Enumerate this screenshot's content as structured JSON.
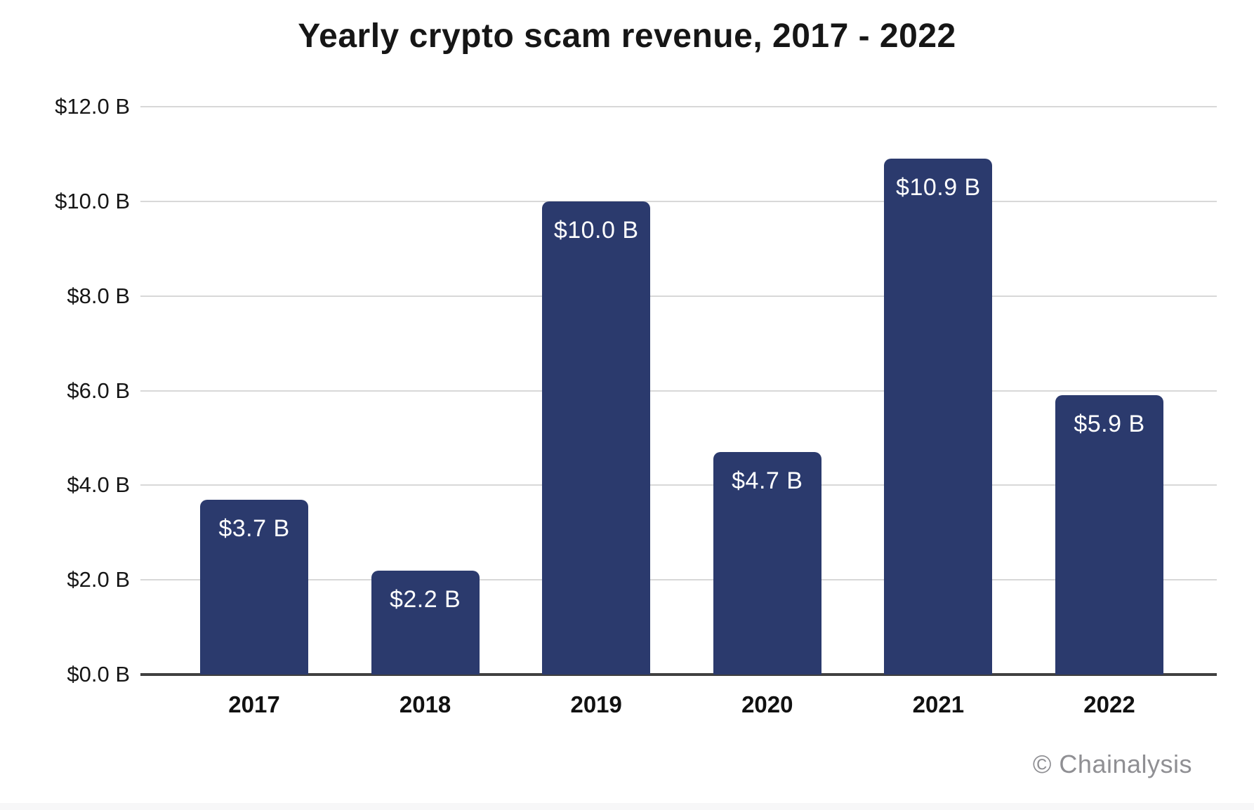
{
  "chart_data": {
    "type": "bar",
    "title": "Yearly crypto scam revenue, 2017 - 2022",
    "categories": [
      "2017",
      "2018",
      "2019",
      "2020",
      "2021",
      "2022"
    ],
    "values": [
      3.7,
      2.2,
      10.0,
      4.7,
      10.9,
      5.9
    ],
    "bar_labels": [
      "$3.7 B",
      "$2.2 B",
      "$10.0 B",
      "$4.7 B",
      "$10.9 B",
      "$5.9 B"
    ],
    "xlabel": "",
    "ylabel": "",
    "ylim": [
      0,
      12
    ],
    "y_tick_values": [
      0,
      2,
      4,
      6,
      8,
      10,
      12
    ],
    "y_tick_labels": [
      "$0.0 B",
      "$2.0 B",
      "$4.0 B",
      "$6.0 B",
      "$8.0 B",
      "$10.0 B",
      "$12.0 B"
    ],
    "grid": true,
    "legend_position": "none",
    "colors": {
      "bar": "#2b3a6d",
      "bar_label_text": "#ffffff",
      "gridline": "#d8d8d8",
      "axis_line": "#404040",
      "tick_text": "#161616",
      "attribution_text": "#8f8f93"
    },
    "attribution": "© Chainalysis"
  }
}
